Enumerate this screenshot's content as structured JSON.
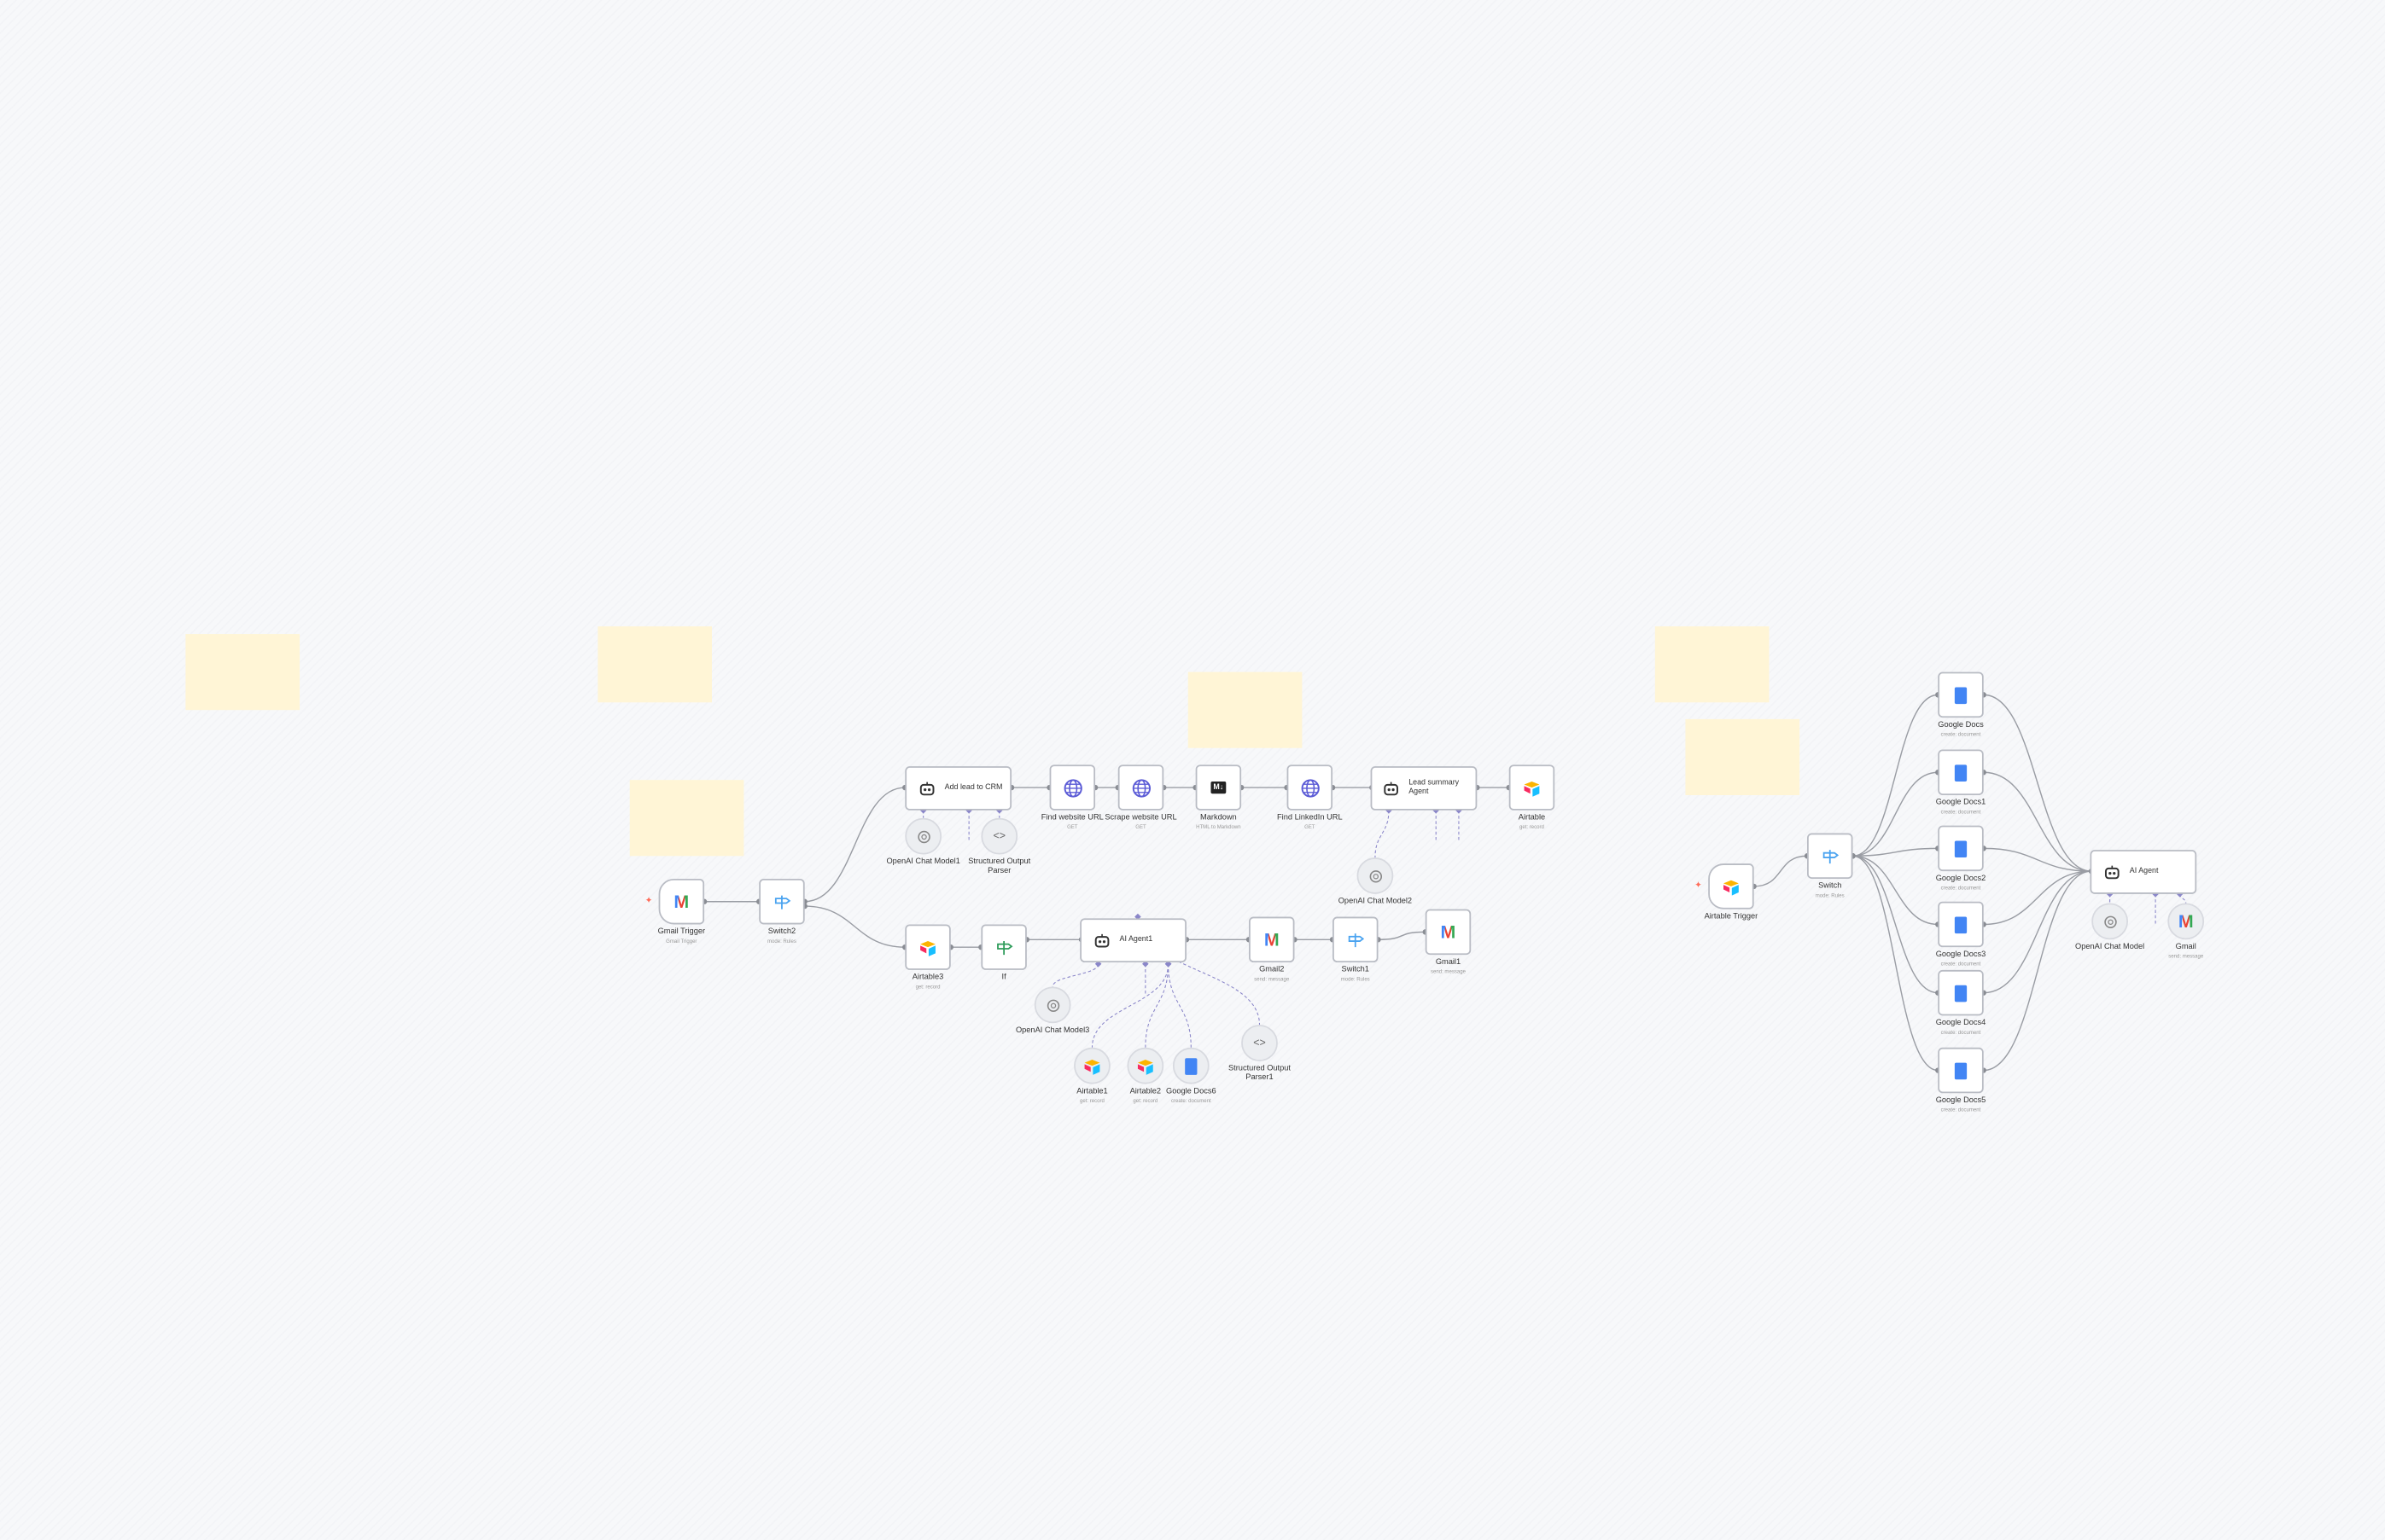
{
  "colors": {
    "canvas": "#f7f8fa",
    "sticky": "#fff5d6",
    "edge": "#9a9da4",
    "ai_edge": "#8a86c9",
    "trigger_marker": "#ff6d5a"
  },
  "sticky_notes": [
    {},
    {},
    {},
    {},
    {},
    {}
  ],
  "nodes": [
    {
      "label": "Gmail Trigger",
      "subtitle": "Gmail Trigger",
      "icon": "gmail-icon"
    },
    {
      "label": "Switch2",
      "subtitle": "mode: Rules",
      "icon": "switch-icon"
    },
    {
      "label": "Add lead to CRM",
      "subtitle": "",
      "icon": "robot-icon"
    },
    {
      "label": "OpenAI Chat Model1",
      "subtitle": "",
      "icon": "openai-icon"
    },
    {
      "label": "Structured Output Parser",
      "subtitle": "",
      "icon": "code-icon"
    },
    {
      "label": "Find website URL",
      "subtitle": "GET",
      "icon": "globe-icon"
    },
    {
      "label": "Scrape website URL",
      "subtitle": "GET",
      "icon": "globe-icon"
    },
    {
      "label": "Markdown",
      "subtitle": "HTML to Markdown",
      "icon": "markdown-icon"
    },
    {
      "label": "Find LinkedIn URL",
      "subtitle": "GET",
      "icon": "globe-icon"
    },
    {
      "label": "Lead summary Agent",
      "subtitle": "",
      "icon": "robot-icon"
    },
    {
      "label": "Airtable",
      "subtitle": "get: record",
      "icon": "airtable-icon"
    },
    {
      "label": "OpenAI Chat Model2",
      "subtitle": "",
      "icon": "openai-icon"
    },
    {
      "label": "Airtable3",
      "subtitle": "get: record",
      "icon": "airtable-icon"
    },
    {
      "label": "If",
      "subtitle": "",
      "icon": "if-icon"
    },
    {
      "label": "AI Agent1",
      "subtitle": "",
      "icon": "robot-icon"
    },
    {
      "label": "Gmail2",
      "subtitle": "send: message",
      "icon": "gmail-icon"
    },
    {
      "label": "Switch1",
      "subtitle": "mode: Rules",
      "icon": "switch-icon"
    },
    {
      "label": "Gmail1",
      "subtitle": "send: message",
      "icon": "gmail-icon"
    },
    {
      "label": "OpenAI Chat Model3",
      "subtitle": "",
      "icon": "openai-icon"
    },
    {
      "label": "Airtable1",
      "subtitle": "get: record",
      "icon": "airtable-icon"
    },
    {
      "label": "Airtable2",
      "subtitle": "get: record",
      "icon": "airtable-icon"
    },
    {
      "label": "Google Docs6",
      "subtitle": "create: document",
      "icon": "google-docs-icon"
    },
    {
      "label": "Structured Output Parser1",
      "subtitle": "",
      "icon": "code-icon"
    },
    {
      "label": "Airtable Trigger",
      "subtitle": "",
      "icon": "airtable-icon"
    },
    {
      "label": "Switch",
      "subtitle": "mode: Rules",
      "icon": "switch-icon"
    },
    {
      "label": "Google Docs",
      "subtitle": "create: document",
      "icon": "google-docs-icon"
    },
    {
      "label": "Google Docs1",
      "subtitle": "create: document",
      "icon": "google-docs-icon"
    },
    {
      "label": "Google Docs2",
      "subtitle": "create: document",
      "icon": "google-docs-icon"
    },
    {
      "label": "Google Docs3",
      "subtitle": "create: document",
      "icon": "google-docs-icon"
    },
    {
      "label": "Google Docs4",
      "subtitle": "create: document",
      "icon": "google-docs-icon"
    },
    {
      "label": "Google Docs5",
      "subtitle": "create: document",
      "icon": "google-docs-icon"
    },
    {
      "label": "AI Agent",
      "subtitle": "",
      "icon": "robot-icon"
    },
    {
      "label": "OpenAI Chat Model",
      "subtitle": "",
      "icon": "openai-icon"
    },
    {
      "label": "Gmail",
      "subtitle": "send: message",
      "icon": "gmail-icon"
    }
  ]
}
